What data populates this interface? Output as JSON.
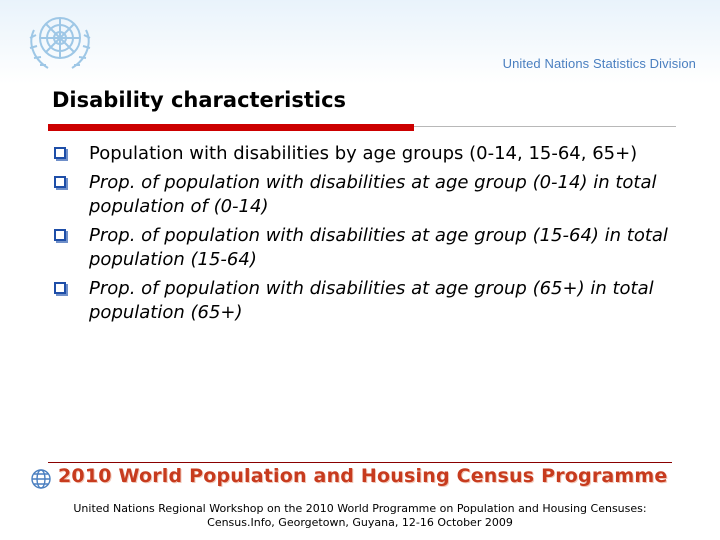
{
  "header": {
    "emblem_icon": "un-emblem-icon",
    "division_name": "United Nations Statistics Division"
  },
  "title": "Disability characteristics",
  "bullets": [
    "Population with disabilities by age groups (0-14, 15-64, 65+)",
    "Prop. of population with disabilities at age group (0-14) in total population of  (0-14)",
    "Prop. of population with disabilities at age group (15-64) in total population (15-64)",
    "Prop. of population with disabilities at age group (65+) in total population (65+)"
  ],
  "footer": {
    "banner_icon": "globe-icon",
    "banner_text": "2010 World Population and Housing Census Programme",
    "caption_line1": "United Nations Regional Workshop on the 2010 World Programme on Population and Housing Censuses:",
    "caption_line2": "Census.Info, Georgetown, Guyana, 12-16 October 2009"
  },
  "colors": {
    "accent_red": "#cc0000",
    "bullet_blue": "#1e4ea8",
    "division_blue": "#4a7fc0",
    "banner_orange": "#c73b1e"
  }
}
